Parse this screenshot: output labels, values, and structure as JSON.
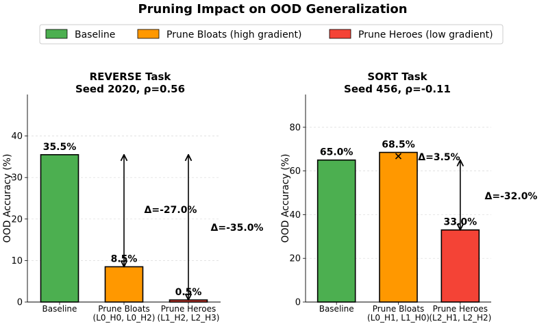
{
  "title": "Pruning Impact on OOD Generalization",
  "legend": {
    "items": [
      {
        "label": "Baseline",
        "color": "#4caf50"
      },
      {
        "label": "Prune Bloats (high gradient)",
        "color": "#ff9800"
      },
      {
        "label": "Prune Heroes (low gradient)",
        "color": "#f44336"
      }
    ]
  },
  "chart_data": [
    {
      "type": "bar",
      "title": "REVERSE Task",
      "subtitle": "Seed 2020, ρ=0.56",
      "ylabel": "OOD Accuracy (%)",
      "ylim": [
        0,
        50
      ],
      "yticks": [
        0,
        10,
        20,
        30,
        40
      ],
      "grid": true,
      "categories": [
        "Baseline",
        "Prune Bloats\n(L0_H0, L0_H2)",
        "Prune Heroes\n(L1_H2, L2_H3)"
      ],
      "values": [
        35.5,
        8.5,
        0.5
      ],
      "value_labels": [
        "35.5%",
        "8.5%",
        "0.5%"
      ],
      "colors": [
        "#4caf50",
        "#ff9800",
        "#f44336"
      ],
      "deltas": [
        {
          "target": 1,
          "label": "Δ=-27.0%"
        },
        {
          "target": 2,
          "label": "Δ=-35.0%"
        }
      ]
    },
    {
      "type": "bar",
      "title": "SORT Task",
      "subtitle": "Seed 456, ρ=-0.11",
      "ylabel": "OOD Accuracy (%)",
      "ylim": [
        0,
        95
      ],
      "yticks": [
        0,
        20,
        40,
        60,
        80
      ],
      "grid": true,
      "categories": [
        "Baseline",
        "Prune Bloats\n(L0_H1, L1_H0)",
        "Prune Heroes\n(L2_H1, L2_H2)"
      ],
      "values": [
        65.0,
        68.5,
        33.0
      ],
      "value_labels": [
        "65.0%",
        "68.5%",
        "33.0%"
      ],
      "colors": [
        "#4caf50",
        "#ff9800",
        "#f44336"
      ],
      "deltas": [
        {
          "target": 1,
          "label": "Δ=3.5%"
        },
        {
          "target": 2,
          "label": "Δ=-32.0%"
        }
      ]
    }
  ]
}
